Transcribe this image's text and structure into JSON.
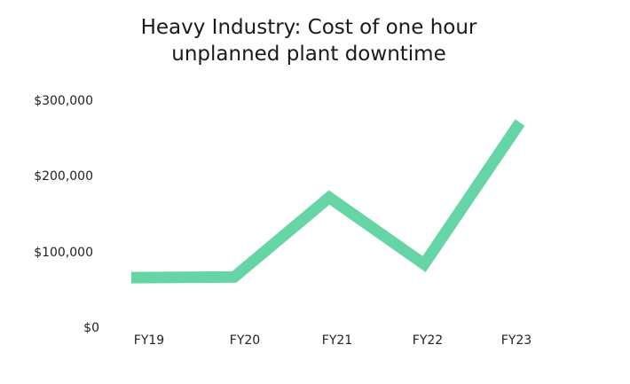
{
  "chart_data": {
    "type": "line",
    "title": "Heavy Industry: Cost of one hour unplanned plant downtime",
    "title_lines": [
      "Heavy Industry: Cost of one hour",
      "unplanned plant downtime"
    ],
    "categories": [
      "FY19",
      "FY20",
      "FY21",
      "FY22",
      "FY23"
    ],
    "series": [
      {
        "name": "Cost of one hour unplanned plant downtime",
        "values": [
          69000,
          70000,
          175000,
          87000,
          274000
        ],
        "color": "#66d5a5"
      }
    ],
    "xlabel": "",
    "ylabel": "",
    "ylim": [
      0,
      300000
    ],
    "yticks": [
      0,
      100000,
      200000,
      300000
    ],
    "ytick_labels": [
      "$0",
      "$100,000",
      "$200,000",
      "$300,000"
    ],
    "grid": false,
    "legend": "none"
  }
}
